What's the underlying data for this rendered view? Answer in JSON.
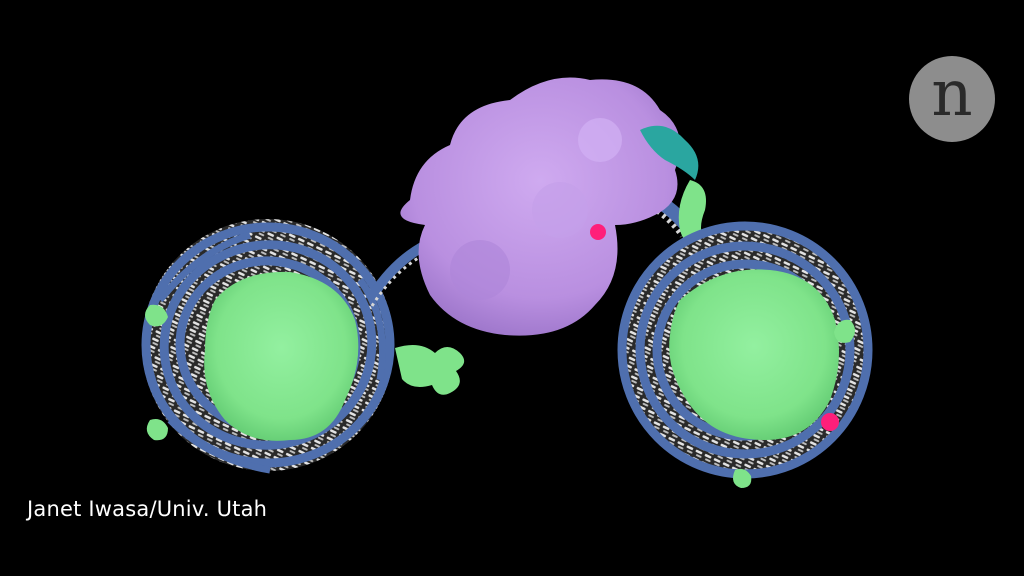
{
  "image": {
    "credit": "Janet Iwasa/Univ. Utah",
    "logo_letter": "n",
    "colors": {
      "background": "#000000",
      "histone_core": "#7fe38a",
      "dna_backbone": "#4f6fae",
      "dna_bases": "#d6d6d6",
      "enzyme": "#b98fe0",
      "enzyme_accent": "#2aa6a0",
      "mark": "#ff1f7a",
      "logo_circle": "#8d8d8d"
    }
  }
}
